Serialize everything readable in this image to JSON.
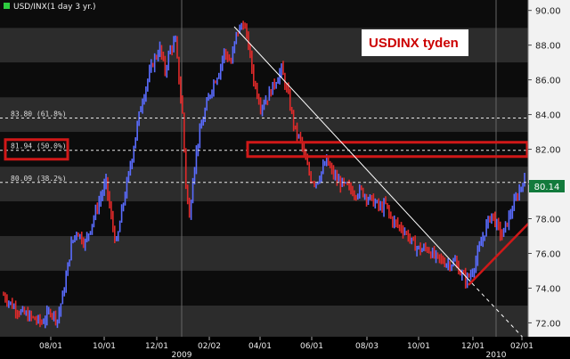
{
  "header": {
    "symbol_label": "USD/INX(1 day 3 yr.)"
  },
  "chart_data": {
    "type": "candlestick",
    "title": "USD/INX(1 day 3 yr.)",
    "annotation": "USDINX tyden",
    "y_ticks": [
      "72.00",
      "74.00",
      "76.00",
      "78.00",
      "80.00",
      "82.00",
      "84.00",
      "86.00",
      "88.00",
      "90.00"
    ],
    "ylim": [
      71.2,
      90.6
    ],
    "x_tick_labels": [
      "08/01",
      "10/01",
      "12/01",
      "02/02",
      "04/01",
      "06/01",
      "08/03",
      "10/01",
      "12/01",
      "02/01"
    ],
    "year_labels": [
      "2009",
      "2010"
    ],
    "current_price": "80.14",
    "fib_levels": [
      {
        "label": "83.80 (61.8%)",
        "value": 83.8
      },
      {
        "label": "81.94 (50.0%)",
        "value": 81.94
      },
      {
        "label": "80.09 (38.2%)",
        "value": 80.09
      }
    ],
    "price_path": [
      [
        0,
        73.6
      ],
      [
        5,
        73.0
      ],
      [
        10,
        72.6
      ],
      [
        16,
        72.3
      ],
      [
        22,
        72.0
      ],
      [
        27,
        72.7
      ],
      [
        31,
        72.2
      ],
      [
        35,
        74.0
      ],
      [
        39,
        76.5
      ],
      [
        42,
        77.3
      ],
      [
        47,
        76.6
      ],
      [
        51,
        77.8
      ],
      [
        55,
        79.0
      ],
      [
        59,
        80.1
      ],
      [
        62,
        78.0
      ],
      [
        65,
        76.5
      ],
      [
        68,
        78.4
      ],
      [
        72,
        80.5
      ],
      [
        75,
        82.2
      ],
      [
        79,
        84.5
      ],
      [
        83,
        86.0
      ],
      [
        86,
        87.0
      ],
      [
        90,
        87.8
      ],
      [
        93,
        86.5
      ],
      [
        96,
        87.8
      ],
      [
        99,
        88.2
      ],
      [
        101,
        86.0
      ],
      [
        103,
        84.0
      ],
      [
        105,
        80.0
      ],
      [
        107,
        78.0
      ],
      [
        109,
        80.4
      ],
      [
        112,
        82.5
      ],
      [
        116,
        84.2
      ],
      [
        120,
        85.6
      ],
      [
        124,
        86.5
      ],
      [
        127,
        87.6
      ],
      [
        131,
        87.0
      ],
      [
        134,
        88.6
      ],
      [
        138,
        89.3
      ],
      [
        141,
        88.0
      ],
      [
        144,
        86.0
      ],
      [
        148,
        84.5
      ],
      [
        152,
        85.0
      ],
      [
        156,
        85.8
      ],
      [
        160,
        86.6
      ],
      [
        164,
        85.0
      ],
      [
        168,
        83.0
      ],
      [
        171,
        82.5
      ],
      [
        174,
        81.3
      ],
      [
        177,
        80.3
      ],
      [
        180,
        80.1
      ],
      [
        183,
        80.7
      ],
      [
        186,
        81.3
      ],
      [
        189,
        80.7
      ],
      [
        192,
        80.2
      ],
      [
        195,
        80.0
      ],
      [
        198,
        79.8
      ],
      [
        202,
        79.5
      ],
      [
        206,
        79.6
      ],
      [
        210,
        79.2
      ],
      [
        214,
        78.9
      ],
      [
        217,
        78.6
      ],
      [
        220,
        78.8
      ],
      [
        223,
        78.0
      ],
      [
        227,
        77.6
      ],
      [
        230,
        77.4
      ],
      [
        233,
        77.0
      ],
      [
        236,
        76.5
      ],
      [
        240,
        76.2
      ],
      [
        244,
        76.3
      ],
      [
        248,
        75.8
      ],
      [
        252,
        75.6
      ],
      [
        256,
        75.4
      ],
      [
        260,
        75.5
      ],
      [
        263,
        74.9
      ],
      [
        266,
        74.5
      ],
      [
        269,
        74.8
      ],
      [
        272,
        75.6
      ],
      [
        275,
        76.6
      ],
      [
        278,
        77.6
      ],
      [
        281,
        78.3
      ],
      [
        284,
        77.6
      ],
      [
        287,
        77.0
      ],
      [
        290,
        77.8
      ],
      [
        293,
        78.6
      ],
      [
        296,
        79.4
      ],
      [
        299,
        80.14
      ]
    ]
  },
  "colors": {
    "up": "#5a6cff",
    "down": "#e02a2a",
    "band_dark": "#0c0c0c",
    "band_light": "#2c2c2c",
    "axis_bg": "#f2f2f2",
    "highlight": "#d01818",
    "price_tag": "#127a3c"
  }
}
